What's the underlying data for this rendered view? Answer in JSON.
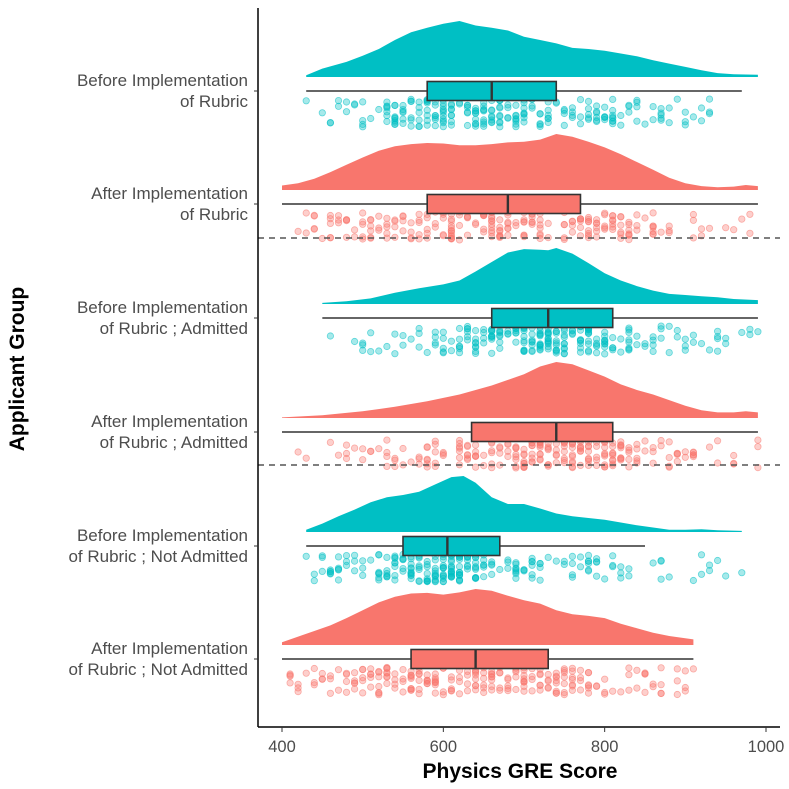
{
  "chart_data": {
    "type": "raincloud",
    "title": "",
    "xlabel": "Physics GRE Score",
    "ylabel": "Applicant Group",
    "xlim": [
      370,
      990
    ],
    "xticks": [
      400,
      600,
      800,
      1000
    ],
    "colors": {
      "before": "#00BFC4",
      "after": "#F8766D"
    },
    "series": [
      {
        "name": "Before Implementation of Rubric",
        "label_lines": [
          "Before Implementation",
          "of Rubric"
        ],
        "group": "before",
        "box": {
          "min": 430,
          "q1": 580,
          "median": 660,
          "q3": 740,
          "max": 970
        },
        "range": [
          430,
          990
        ],
        "density": [
          [
            430,
            0.03
          ],
          [
            450,
            0.15
          ],
          [
            480,
            0.27
          ],
          [
            500,
            0.38
          ],
          [
            520,
            0.5
          ],
          [
            540,
            0.66
          ],
          [
            560,
            0.8
          ],
          [
            580,
            0.88
          ],
          [
            600,
            0.95
          ],
          [
            620,
            1.0
          ],
          [
            640,
            0.92
          ],
          [
            660,
            0.88
          ],
          [
            680,
            0.83
          ],
          [
            700,
            0.72
          ],
          [
            720,
            0.66
          ],
          [
            740,
            0.6
          ],
          [
            760,
            0.52
          ],
          [
            780,
            0.5
          ],
          [
            800,
            0.47
          ],
          [
            820,
            0.42
          ],
          [
            840,
            0.37
          ],
          [
            860,
            0.3
          ],
          [
            880,
            0.24
          ],
          [
            900,
            0.18
          ],
          [
            920,
            0.12
          ],
          [
            940,
            0.07
          ],
          [
            960,
            0.05
          ],
          [
            990,
            0.04
          ]
        ]
      },
      {
        "name": "After Implementation of Rubric",
        "label_lines": [
          "After Implementation",
          "of Rubric"
        ],
        "group": "after",
        "box": {
          "min": 400,
          "q1": 580,
          "median": 680,
          "q3": 770,
          "max": 990
        },
        "range": [
          400,
          990
        ],
        "density": [
          [
            400,
            0.08
          ],
          [
            420,
            0.12
          ],
          [
            440,
            0.2
          ],
          [
            460,
            0.32
          ],
          [
            480,
            0.45
          ],
          [
            500,
            0.58
          ],
          [
            520,
            0.7
          ],
          [
            540,
            0.78
          ],
          [
            560,
            0.82
          ],
          [
            580,
            0.84
          ],
          [
            600,
            0.83
          ],
          [
            620,
            0.8
          ],
          [
            640,
            0.8
          ],
          [
            660,
            0.82
          ],
          [
            680,
            0.85
          ],
          [
            700,
            0.86
          ],
          [
            720,
            0.9
          ],
          [
            740,
            1.0
          ],
          [
            760,
            0.95
          ],
          [
            780,
            0.86
          ],
          [
            800,
            0.76
          ],
          [
            820,
            0.64
          ],
          [
            840,
            0.5
          ],
          [
            860,
            0.36
          ],
          [
            880,
            0.22
          ],
          [
            900,
            0.12
          ],
          [
            920,
            0.07
          ],
          [
            940,
            0.05
          ],
          [
            960,
            0.06
          ],
          [
            975,
            0.09
          ],
          [
            990,
            0.07
          ]
        ]
      },
      {
        "name": "Before Implementation of Rubric ; Admitted",
        "label_lines": [
          "Before Implementation",
          "of Rubric ; Admitted"
        ],
        "group": "before",
        "box": {
          "min": 450,
          "q1": 660,
          "median": 730,
          "q3": 810,
          "max": 990
        },
        "range": [
          450,
          990
        ],
        "density": [
          [
            450,
            0.02
          ],
          [
            480,
            0.05
          ],
          [
            510,
            0.1
          ],
          [
            540,
            0.2
          ],
          [
            570,
            0.28
          ],
          [
            600,
            0.35
          ],
          [
            620,
            0.42
          ],
          [
            640,
            0.58
          ],
          [
            660,
            0.75
          ],
          [
            680,
            0.92
          ],
          [
            700,
            0.98
          ],
          [
            720,
            0.97
          ],
          [
            730,
            0.96
          ],
          [
            740,
            1.0
          ],
          [
            760,
            0.9
          ],
          [
            780,
            0.73
          ],
          [
            800,
            0.55
          ],
          [
            820,
            0.42
          ],
          [
            840,
            0.32
          ],
          [
            860,
            0.24
          ],
          [
            880,
            0.18
          ],
          [
            900,
            0.16
          ],
          [
            920,
            0.14
          ],
          [
            940,
            0.12
          ],
          [
            960,
            0.09
          ],
          [
            990,
            0.07
          ]
        ]
      },
      {
        "name": "After Implementation of Rubric ; Admitted",
        "label_lines": [
          "After Implementation",
          "of Rubric ; Admitted"
        ],
        "group": "after",
        "box": {
          "min": 400,
          "q1": 635,
          "median": 740,
          "q3": 810,
          "max": 990
        },
        "range": [
          400,
          990
        ],
        "density": [
          [
            400,
            0.01
          ],
          [
            450,
            0.05
          ],
          [
            500,
            0.12
          ],
          [
            540,
            0.2
          ],
          [
            580,
            0.3
          ],
          [
            620,
            0.42
          ],
          [
            660,
            0.58
          ],
          [
            700,
            0.78
          ],
          [
            720,
            0.92
          ],
          [
            740,
            1.0
          ],
          [
            760,
            0.96
          ],
          [
            780,
            0.85
          ],
          [
            800,
            0.74
          ],
          [
            820,
            0.6
          ],
          [
            840,
            0.5
          ],
          [
            860,
            0.42
          ],
          [
            880,
            0.32
          ],
          [
            900,
            0.22
          ],
          [
            920,
            0.14
          ],
          [
            940,
            0.1
          ],
          [
            960,
            0.1
          ],
          [
            975,
            0.12
          ],
          [
            990,
            0.1
          ]
        ]
      },
      {
        "name": "Before Implementation of Rubric ; Not Admitted",
        "label_lines": [
          "Before Implementation",
          "of Rubric ; Not Admitted"
        ],
        "group": "before",
        "box": {
          "min": 430,
          "q1": 550,
          "median": 605,
          "q3": 670,
          "max": 850
        },
        "range": [
          430,
          970
        ],
        "density": [
          [
            430,
            0.04
          ],
          [
            450,
            0.15
          ],
          [
            470,
            0.28
          ],
          [
            490,
            0.4
          ],
          [
            510,
            0.53
          ],
          [
            530,
            0.62
          ],
          [
            550,
            0.66
          ],
          [
            570,
            0.72
          ],
          [
            590,
            0.85
          ],
          [
            610,
            0.98
          ],
          [
            625,
            1.0
          ],
          [
            640,
            0.88
          ],
          [
            660,
            0.62
          ],
          [
            680,
            0.5
          ],
          [
            700,
            0.5
          ],
          [
            720,
            0.42
          ],
          [
            740,
            0.33
          ],
          [
            760,
            0.28
          ],
          [
            780,
            0.25
          ],
          [
            800,
            0.22
          ],
          [
            820,
            0.17
          ],
          [
            840,
            0.12
          ],
          [
            860,
            0.08
          ],
          [
            880,
            0.04
          ],
          [
            900,
            0.04
          ],
          [
            920,
            0.05
          ],
          [
            940,
            0.03
          ],
          [
            970,
            0.02
          ]
        ]
      },
      {
        "name": "After Implementation of Rubric ; Not Admitted",
        "label_lines": [
          "After Implementation",
          "of Rubric ; Not Admitted"
        ],
        "group": "after",
        "box": {
          "min": 400,
          "q1": 560,
          "median": 640,
          "q3": 730,
          "max": 910
        },
        "range": [
          400,
          910
        ],
        "density": [
          [
            400,
            0.05
          ],
          [
            420,
            0.15
          ],
          [
            440,
            0.25
          ],
          [
            460,
            0.35
          ],
          [
            480,
            0.48
          ],
          [
            500,
            0.62
          ],
          [
            520,
            0.76
          ],
          [
            540,
            0.86
          ],
          [
            560,
            0.92
          ],
          [
            580,
            0.93
          ],
          [
            600,
            0.9
          ],
          [
            620,
            0.94
          ],
          [
            640,
            1.0
          ],
          [
            660,
            0.97
          ],
          [
            680,
            0.88
          ],
          [
            700,
            0.8
          ],
          [
            720,
            0.74
          ],
          [
            740,
            0.62
          ],
          [
            760,
            0.55
          ],
          [
            780,
            0.52
          ],
          [
            800,
            0.48
          ],
          [
            820,
            0.38
          ],
          [
            840,
            0.3
          ],
          [
            860,
            0.22
          ],
          [
            880,
            0.16
          ],
          [
            900,
            0.12
          ],
          [
            910,
            0.1
          ]
        ]
      }
    ]
  }
}
